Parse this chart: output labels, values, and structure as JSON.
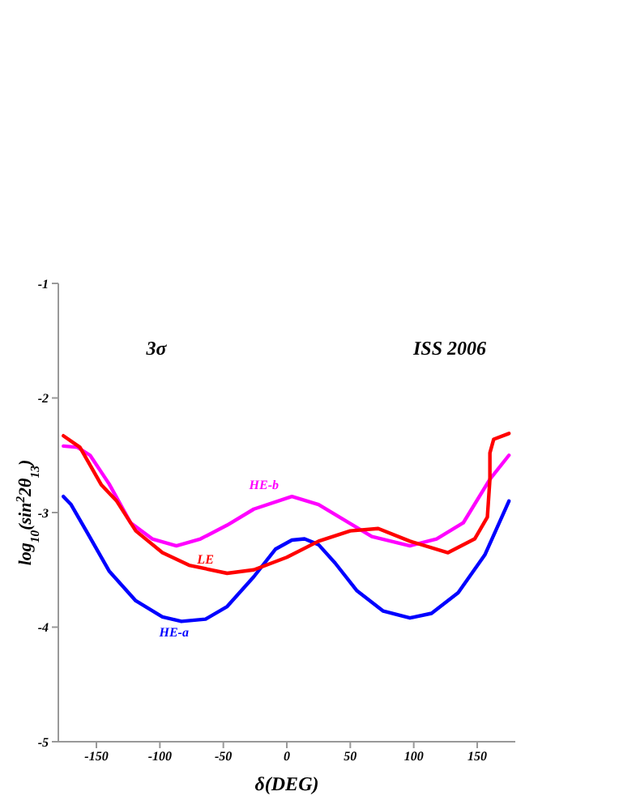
{
  "chart_data": {
    "type": "line",
    "xlabel": "δ(DEG)",
    "ylabel": "log$_{10}$(sin$^{2}$2θ$_{13}$)",
    "xlim": [
      -180,
      180
    ],
    "ylim": [
      -5,
      -1
    ],
    "xticks": [
      -150,
      -100,
      -50,
      0,
      50,
      100,
      150
    ],
    "yticks": [
      -5,
      -4,
      -3,
      -2,
      -1
    ],
    "grid": false,
    "legend": false,
    "marker": "none",
    "line_style": "solid",
    "annotations": [
      "3σ",
      "ISS 2006"
    ],
    "series": [
      {
        "name": "HE-a",
        "color": "#0000ff",
        "x": [
          -176,
          -170,
          -157,
          -140,
          -119,
          -98,
          -83,
          -64,
          -47,
          -26,
          -9,
          4,
          14,
          25,
          38,
          55,
          76,
          97,
          114,
          135,
          156,
          175
        ],
        "values": [
          -2.86,
          -2.93,
          -3.18,
          -3.51,
          -3.77,
          -3.91,
          -3.95,
          -3.93,
          -3.82,
          -3.56,
          -3.32,
          -3.24,
          -3.23,
          -3.28,
          -3.44,
          -3.68,
          -3.86,
          -3.92,
          -3.88,
          -3.7,
          -3.37,
          -2.9
        ]
      },
      {
        "name": "HE-b",
        "color": "#ff00ff",
        "x": [
          -176,
          -165,
          -155,
          -140,
          -123,
          -106,
          -87,
          -68,
          -47,
          -26,
          4,
          25,
          46,
          67,
          97,
          118,
          139,
          160,
          175
        ],
        "values": [
          -2.42,
          -2.43,
          -2.5,
          -2.75,
          -3.09,
          -3.23,
          -3.29,
          -3.23,
          -3.11,
          -2.97,
          -2.86,
          -2.93,
          -3.07,
          -3.21,
          -3.29,
          -3.23,
          -3.09,
          -2.71,
          -2.5
        ]
      },
      {
        "name": "LE",
        "color": "#ff0000",
        "x": [
          -176,
          -163,
          -146,
          -134,
          -119,
          -98,
          -77,
          -47,
          -26,
          0,
          25,
          50,
          72,
          97,
          127,
          148,
          158,
          160,
          160,
          163,
          175
        ],
        "values": [
          -2.33,
          -2.43,
          -2.76,
          -2.9,
          -3.16,
          -3.35,
          -3.46,
          -3.53,
          -3.5,
          -3.39,
          -3.25,
          -3.16,
          -3.14,
          -3.25,
          -3.35,
          -3.23,
          -3.04,
          -2.71,
          -2.48,
          -2.36,
          -2.31
        ]
      }
    ]
  }
}
